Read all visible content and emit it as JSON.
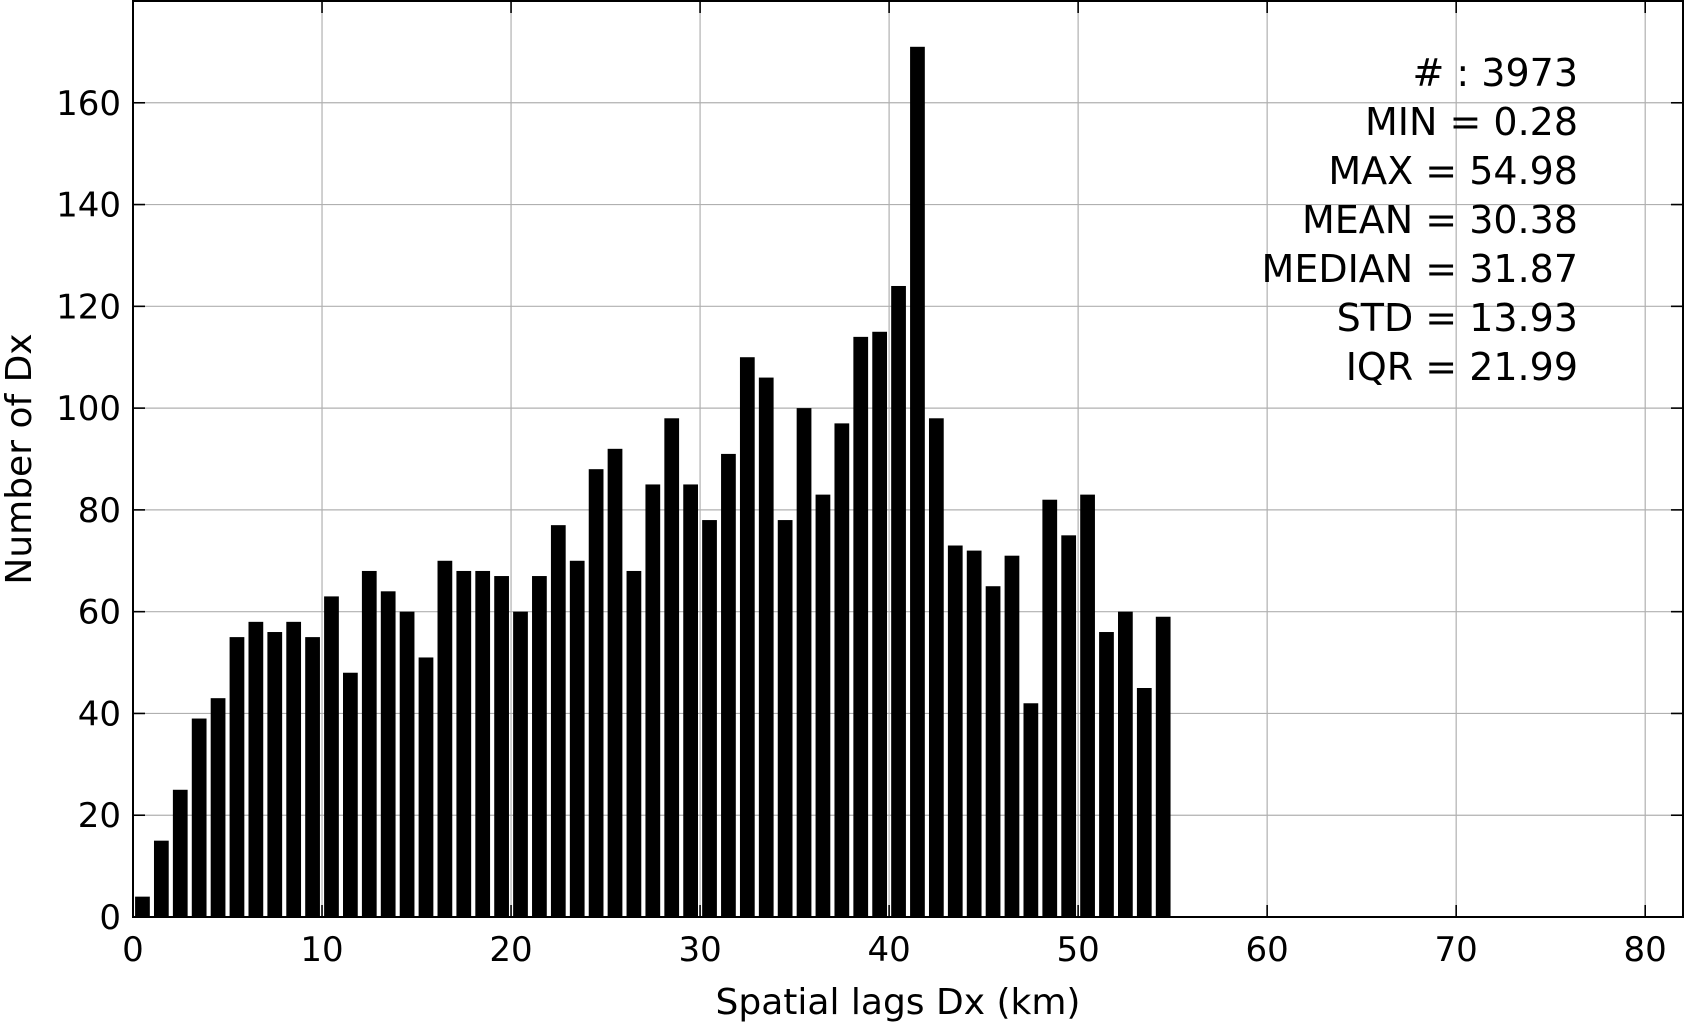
{
  "colors": {
    "bar": "#000000",
    "grid": "#b0b0b0",
    "axis": "#000000",
    "background": "#ffffff"
  },
  "chart_data": {
    "type": "bar",
    "title": "",
    "xlabel": "Spatial lags Dx (km)",
    "ylabel": "Number of Dx",
    "xlim": [
      0,
      82
    ],
    "ylim": [
      0,
      180
    ],
    "xticks": [
      0,
      10,
      20,
      30,
      40,
      50,
      60,
      70,
      80
    ],
    "yticks": [
      0,
      20,
      40,
      60,
      80,
      100,
      120,
      140,
      160
    ],
    "grid": true,
    "bin_width": 1,
    "bin_centers": [
      0.5,
      1.5,
      2.5,
      3.5,
      4.5,
      5.5,
      6.5,
      7.5,
      8.5,
      9.5,
      10.5,
      11.5,
      12.5,
      13.5,
      14.5,
      15.5,
      16.5,
      17.5,
      18.5,
      19.5,
      20.5,
      21.5,
      22.5,
      23.5,
      24.5,
      25.5,
      26.5,
      27.5,
      28.5,
      29.5,
      30.5,
      31.5,
      32.5,
      33.5,
      34.5,
      35.5,
      36.5,
      37.5,
      38.5,
      39.5,
      40.5,
      41.5,
      42.5,
      43.5,
      44.5,
      45.5,
      46.5,
      47.5,
      48.5,
      49.5,
      50.5,
      51.5,
      52.5,
      53.5,
      54.5
    ],
    "values": [
      4,
      15,
      25,
      39,
      43,
      55,
      58,
      56,
      58,
      55,
      63,
      48,
      68,
      64,
      60,
      51,
      70,
      68,
      68,
      67,
      60,
      67,
      77,
      70,
      88,
      92,
      68,
      85,
      98,
      85,
      78,
      91,
      110,
      106,
      78,
      100,
      83,
      97,
      114,
      115,
      124,
      171,
      98,
      73,
      72,
      65,
      71,
      42,
      82,
      75,
      83,
      56,
      60,
      45,
      59
    ],
    "annotation": [
      "# : 3973",
      "MIN = 0.28",
      "MAX =  54.98",
      "MEAN = 30.38",
      "MEDIAN = 31.87",
      "STD = 13.93",
      "IQR = 21.99"
    ],
    "annotation_placement": "top-right"
  }
}
